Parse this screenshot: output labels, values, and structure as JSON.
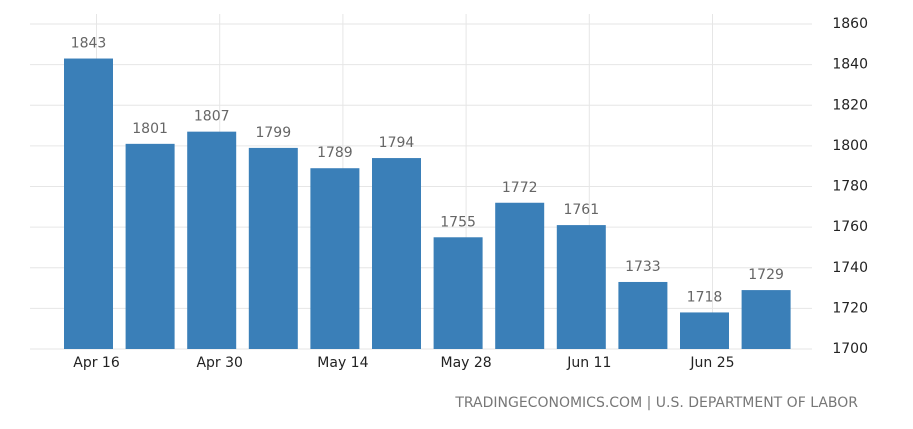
{
  "chart_data": {
    "type": "bar",
    "categories": [
      "Apr 16",
      null,
      "Apr 30",
      null,
      "May 14",
      null,
      "May 28",
      null,
      "Jun 11",
      null,
      "Jun 25",
      null
    ],
    "values": [
      1843,
      1801,
      1807,
      1799,
      1789,
      1794,
      1755,
      1772,
      1761,
      1733,
      1718,
      1729
    ],
    "color": "#3a7fb8",
    "ylim": [
      1700,
      1860
    ],
    "yticks": [
      1700,
      1720,
      1740,
      1760,
      1780,
      1800,
      1820,
      1840,
      1860
    ],
    "grid": true,
    "source": "TRADINGECONOMICS.COM | U.S. DEPARTMENT OF LABOR"
  }
}
